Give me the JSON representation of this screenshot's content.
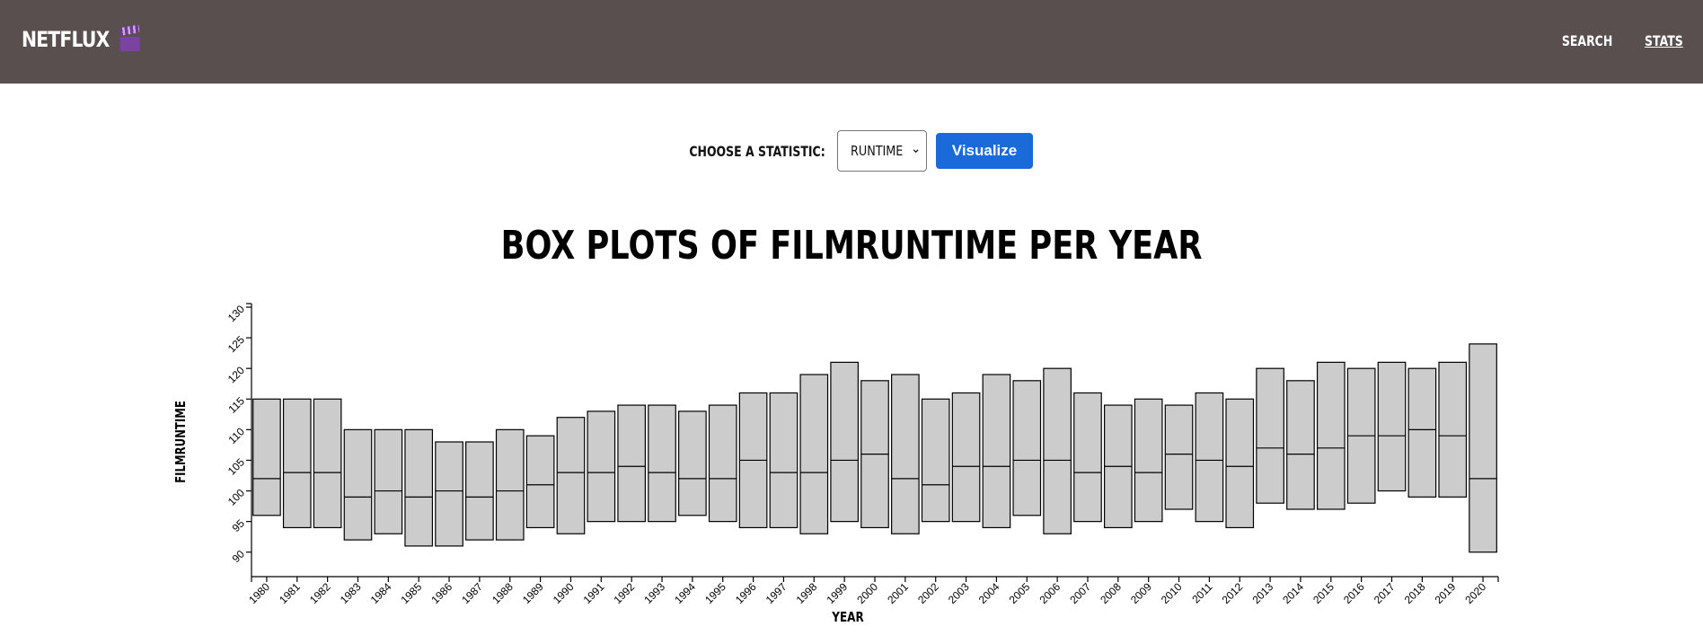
{
  "header": {
    "brand": "NETFLUX",
    "brand_icon": "clapperboard-icon",
    "nav": [
      {
        "label": "SEARCH",
        "active": false
      },
      {
        "label": "STATS",
        "active": true
      }
    ]
  },
  "controls": {
    "label": "CHOOSE A STATISTIC:",
    "select_value": "RUNTIME",
    "button_label": "Visualize"
  },
  "chart_data": {
    "type": "box",
    "title": "BOX PLOTS OF FILMRUNTIME PER YEAR",
    "xlabel": "YEAR",
    "ylabel": "FILMRUNTIME",
    "ylim": [
      86,
      130
    ],
    "yticks": [
      90,
      95,
      100,
      105,
      110,
      115,
      120,
      125,
      130
    ],
    "box_fill": "#cccccc",
    "categories": [
      "1980",
      "1981",
      "1982",
      "1983",
      "1984",
      "1985",
      "1986",
      "1987",
      "1988",
      "1989",
      "1990",
      "1991",
      "1992",
      "1993",
      "1994",
      "1995",
      "1996",
      "1997",
      "1998",
      "1999",
      "2000",
      "2001",
      "2002",
      "2003",
      "2004",
      "2005",
      "2006",
      "2007",
      "2008",
      "2009",
      "2010",
      "2011",
      "2012",
      "2013",
      "2014",
      "2015",
      "2016",
      "2017",
      "2018",
      "2019",
      "2020"
    ],
    "q1": [
      96,
      94,
      94,
      92,
      93,
      91,
      91,
      92,
      92,
      94,
      93,
      95,
      95,
      95,
      96,
      95,
      94,
      94,
      93,
      95,
      94,
      93,
      95,
      95,
      94,
      96,
      93,
      95,
      94,
      95,
      97,
      95,
      94,
      98,
      97,
      97,
      98,
      100,
      99,
      99,
      90
    ],
    "median": [
      102,
      103,
      103,
      99,
      100,
      99,
      100,
      99,
      100,
      101,
      103,
      103,
      104,
      103,
      102,
      102,
      105,
      103,
      103,
      105,
      106,
      102,
      101,
      104,
      104,
      105,
      105,
      103,
      104,
      103,
      106,
      105,
      104,
      107,
      106,
      107,
      109,
      109,
      110,
      109,
      102
    ],
    "q3": [
      115,
      115,
      115,
      110,
      110,
      110,
      108,
      108,
      110,
      109,
      112,
      113,
      114,
      114,
      113,
      114,
      116,
      116,
      119,
      121,
      118,
      119,
      115,
      116,
      119,
      118,
      120,
      116,
      114,
      115,
      114,
      116,
      115,
      120,
      118,
      121,
      120,
      121,
      120,
      121,
      124
    ]
  }
}
